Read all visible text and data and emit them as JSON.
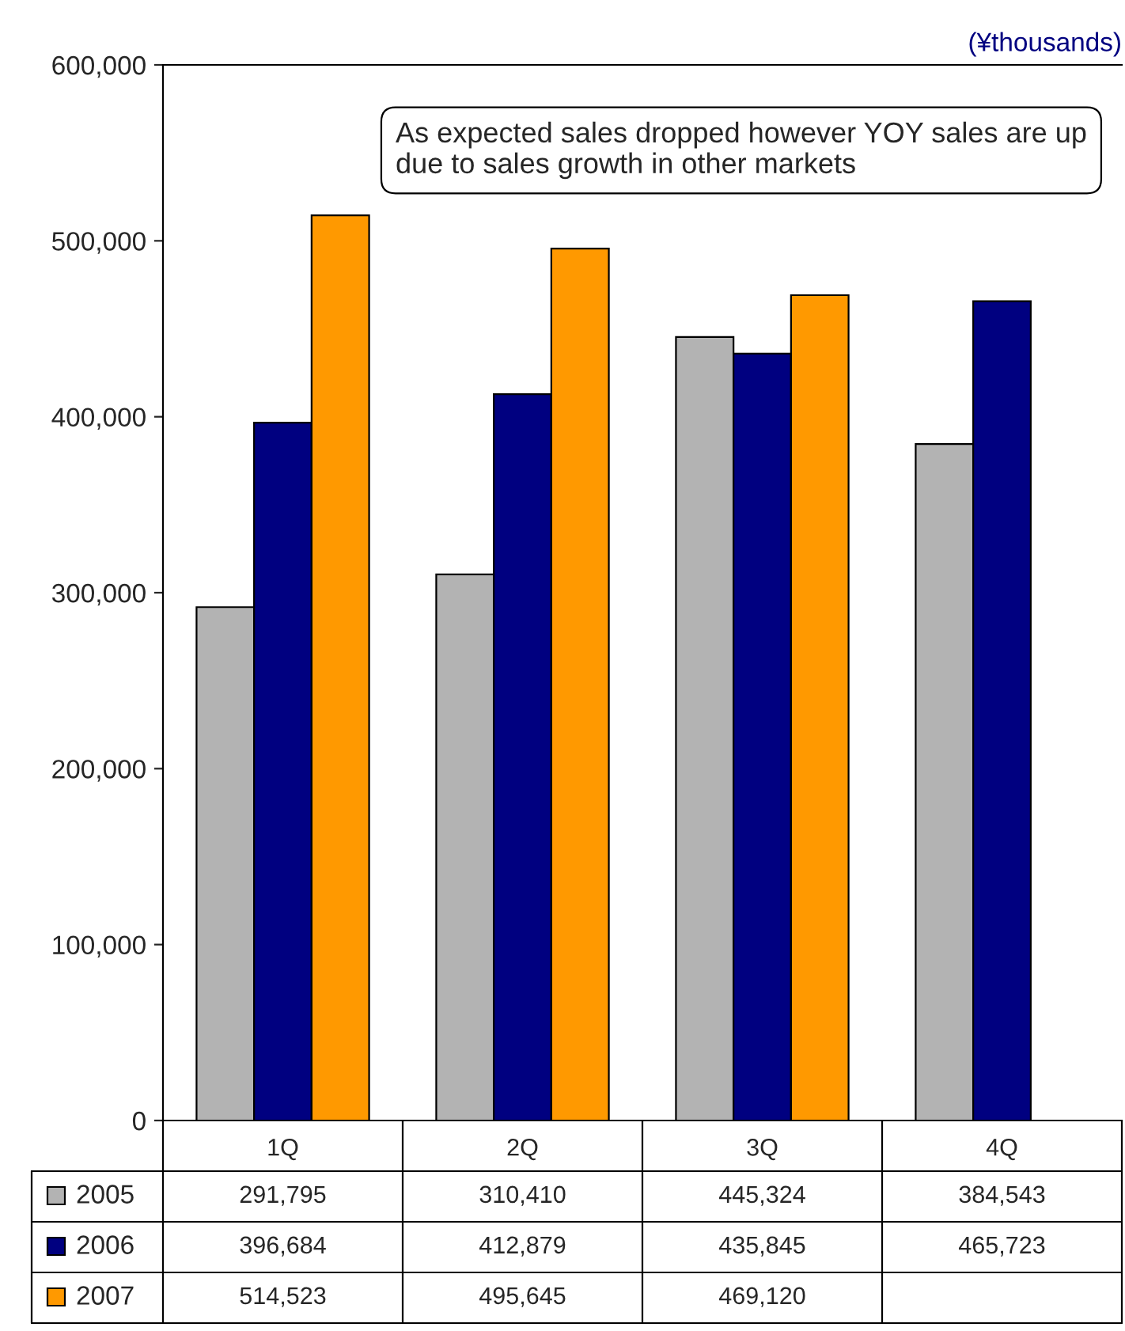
{
  "chart_data": {
    "type": "bar",
    "categories": [
      "1Q",
      "2Q",
      "3Q",
      "4Q"
    ],
    "series": [
      {
        "name": "2005",
        "color": "#b3b3b3",
        "values": [
          291795,
          310410,
          445324,
          384543
        ],
        "value_labels": [
          "291,795",
          "310,410",
          "445,324",
          "384,543"
        ]
      },
      {
        "name": "2006",
        "color": "#000080",
        "values": [
          396684,
          412879,
          435845,
          465723
        ],
        "value_labels": [
          "396,684",
          "412,879",
          "435,845",
          "465,723"
        ]
      },
      {
        "name": "2007",
        "color": "#ff9900",
        "values": [
          514523,
          495645,
          469120,
          null
        ],
        "value_labels": [
          "514,523",
          "495,645",
          "469,120",
          null
        ]
      }
    ],
    "ylim": [
      0,
      600000
    ],
    "yticks": [
      {
        "value": 0,
        "label": "0"
      },
      {
        "value": 100000,
        "label": "100,000"
      },
      {
        "value": 200000,
        "label": "200,000"
      },
      {
        "value": 300000,
        "label": "300,000"
      },
      {
        "value": 400000,
        "label": "400,000"
      },
      {
        "value": 500000,
        "label": "500,000"
      },
      {
        "value": 600000,
        "label": "600,000"
      }
    ],
    "annotations": [
      "(¥thousands)",
      "As expected sales dropped however YOY sales are up due to sales growth in other markets"
    ],
    "grid": false,
    "legend": "bottom"
  }
}
